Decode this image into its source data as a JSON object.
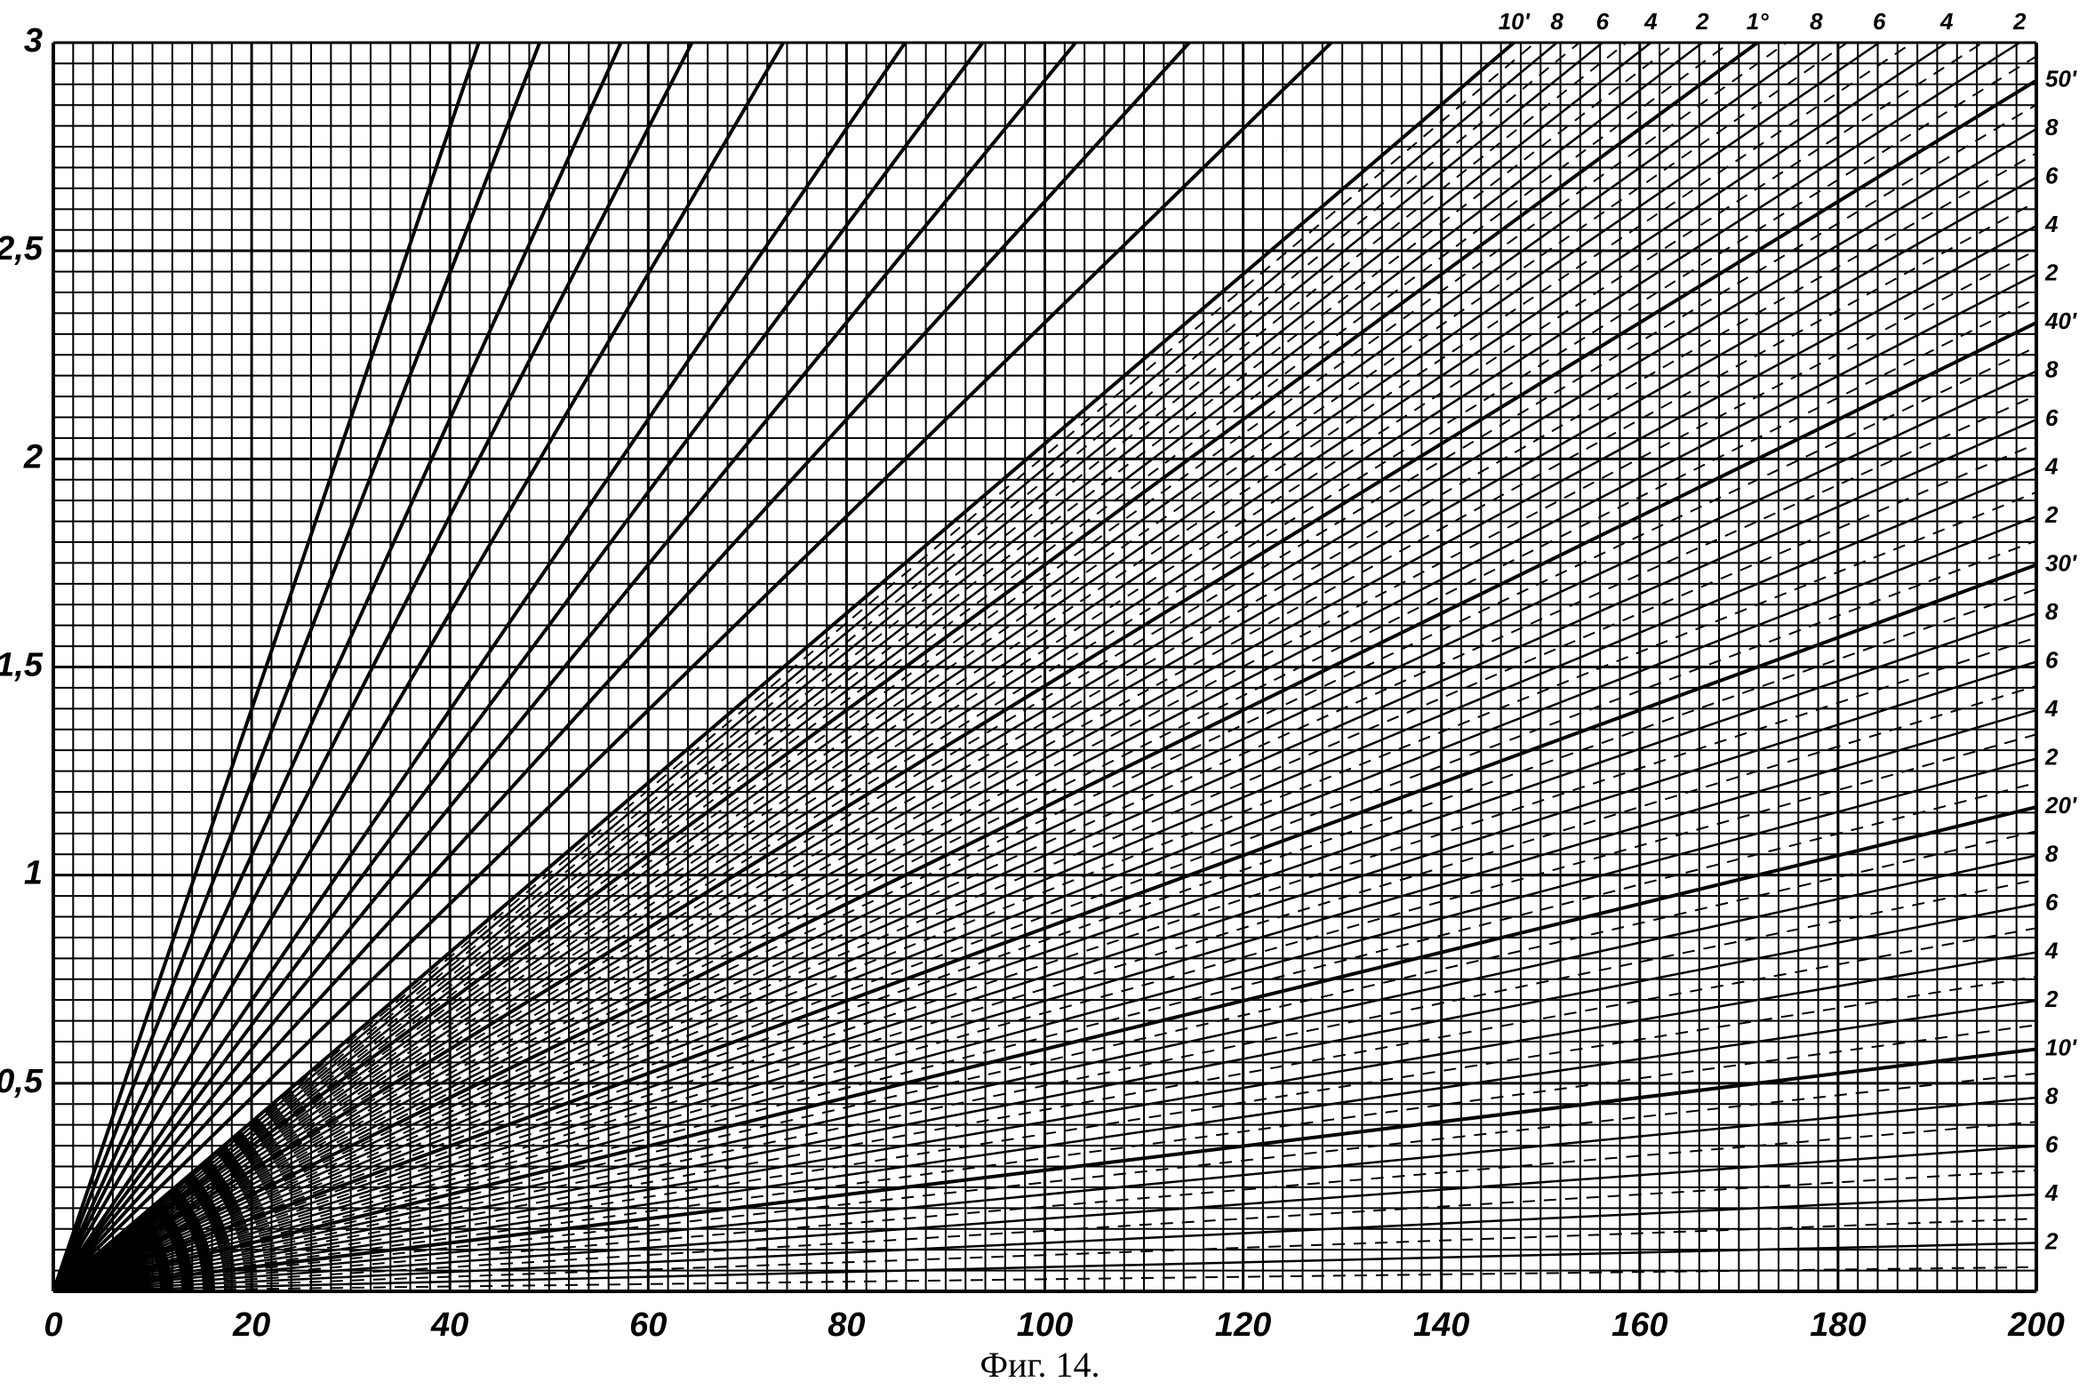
{
  "chart_data": {
    "type": "ray-nomogram",
    "caption": "Фиг. 14.",
    "xlim": [
      0,
      200
    ],
    "ylim": [
      0,
      3
    ],
    "xticks": [
      0,
      20,
      40,
      60,
      80,
      100,
      120,
      140,
      160,
      180,
      200
    ],
    "yticks": [
      {
        "value": 0.5,
        "label": "0,5"
      },
      1,
      {
        "value": 1.5,
        "label": "1,5"
      },
      2,
      {
        "value": 2.5,
        "label": "2,5"
      },
      3
    ],
    "grid": true,
    "color": "#000000",
    "rays": [
      2,
      4,
      6,
      8,
      10,
      12,
      14,
      16,
      18,
      20,
      22,
      24,
      26,
      28,
      30,
      32,
      34,
      36,
      38,
      40,
      42,
      44,
      46,
      48,
      50,
      52,
      54,
      56,
      58,
      60,
      62,
      64,
      66,
      68,
      70,
      80,
      90,
      100,
      110,
      120,
      140,
      160,
      180,
      210,
      240
    ],
    "ray_labels": [
      "2",
      "4",
      "6",
      "8",
      "10'",
      "2",
      "4",
      "6",
      "8",
      "20'",
      "2",
      "4",
      "6",
      "8",
      "30'",
      "2",
      "4",
      "6",
      "8",
      "40'",
      "2",
      "4",
      "6",
      "8",
      "50'",
      "2",
      "4",
      "6",
      "8",
      "1°",
      "2",
      "4",
      "6",
      "8",
      "10'",
      null,
      null,
      null,
      null,
      null,
      null,
      null,
      null,
      null,
      null
    ],
    "dashed_rays": [
      1,
      3,
      5,
      7,
      9,
      11,
      13,
      15,
      17,
      19,
      21,
      23,
      25,
      27,
      29,
      31,
      33,
      35,
      37,
      39,
      41,
      43,
      45,
      47,
      49,
      51,
      53,
      55,
      57,
      59,
      61,
      63,
      65,
      67,
      69
    ]
  }
}
